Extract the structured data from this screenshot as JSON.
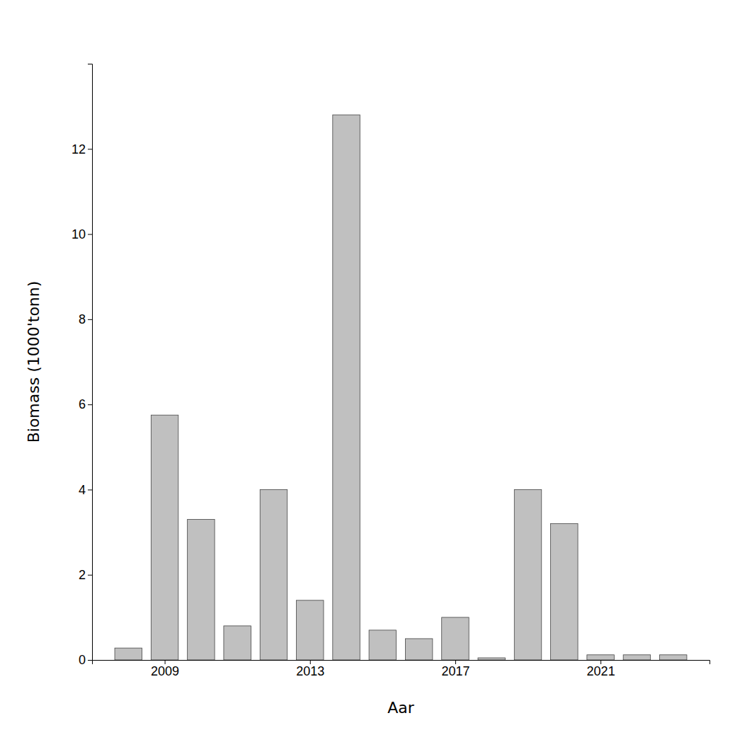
{
  "chart_data": {
    "type": "bar",
    "x": [
      2008,
      2009,
      2010,
      2011,
      2012,
      2013,
      2014,
      2015,
      2016,
      2017,
      2018,
      2019,
      2020,
      2021,
      2022,
      2023
    ],
    "values": [
      0.28,
      5.75,
      3.3,
      0.8,
      4.0,
      1.4,
      12.8,
      0.7,
      0.5,
      1.0,
      0.05,
      4.0,
      3.2,
      0.12,
      0.12,
      0.12
    ],
    "color": "#c0c0c0",
    "xlabel": "Aar",
    "ylabel": "Biomass (1000'tonn)",
    "xlim": [
      2007.0,
      2024.0
    ],
    "ylim": [
      0,
      14
    ],
    "xticks": [
      2009,
      2013,
      2017,
      2021
    ],
    "yticks": [
      0,
      2,
      4,
      6,
      8,
      10,
      12
    ]
  }
}
